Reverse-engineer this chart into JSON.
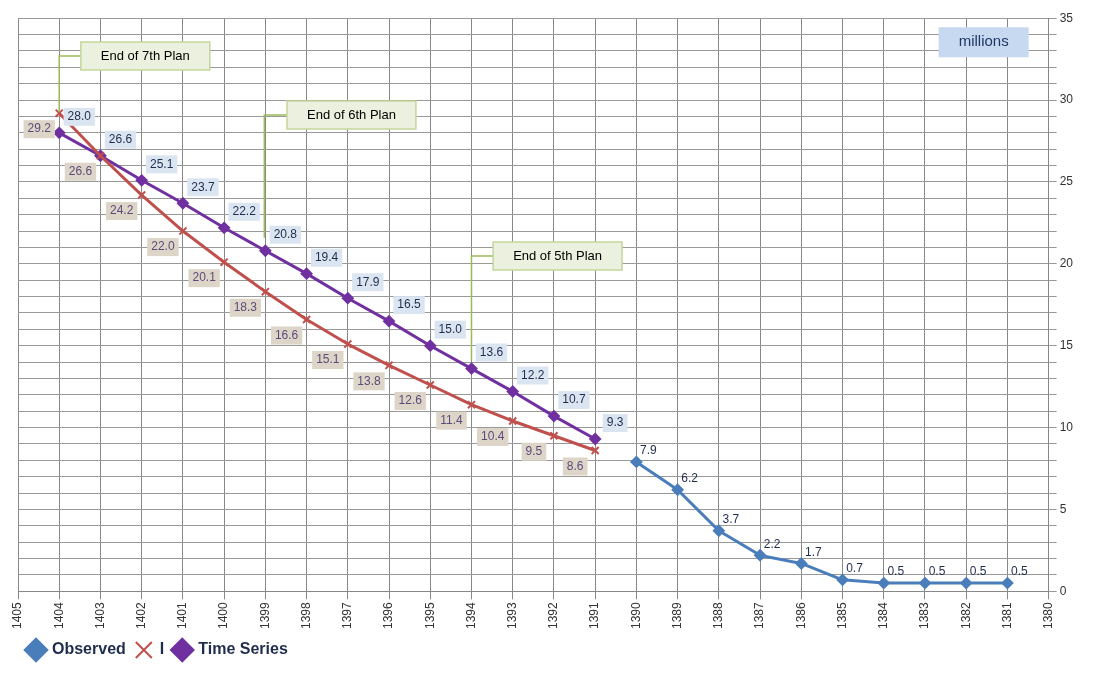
{
  "chart_data": {
    "type": "line",
    "x": [
      1404,
      1403,
      1402,
      1401,
      1400,
      1399,
      1398,
      1397,
      1396,
      1395,
      1394,
      1393,
      1392,
      1391
    ],
    "series": [
      {
        "name": "Observed",
        "color": "#4a7ebb",
        "marker": "diamond",
        "x": [
          1390,
          1389,
          1388,
          1387,
          1386,
          1385,
          1384,
          1383,
          1382,
          1381
        ],
        "values": [
          7.9,
          6.2,
          3.7,
          2.2,
          1.7,
          0.7,
          0.5,
          0.5,
          0.5,
          0.5
        ],
        "value_labels": [
          "7.9",
          "6.2",
          "3.7",
          "2.2",
          "1.7",
          "0.7",
          "0.5",
          "0.5",
          "0.5",
          "0.5"
        ]
      },
      {
        "name": "I",
        "color": "#c0504d",
        "marker": "cross",
        "values": [
          29.2,
          26.6,
          24.2,
          22.0,
          20.1,
          18.3,
          16.6,
          15.1,
          13.8,
          12.6,
          11.4,
          10.4,
          9.5,
          8.6
        ],
        "value_labels": [
          "29.2",
          "26.6",
          "24.2",
          "22.0",
          "20.1",
          "18.3",
          "16.6",
          "15.1",
          "13.8",
          "12.6",
          "11.4",
          "10.4",
          "9.5",
          "8.6"
        ]
      },
      {
        "name": "Time Series",
        "color": "#7030a0",
        "marker": "diamond",
        "values": [
          28.0,
          26.6,
          25.1,
          23.7,
          22.2,
          20.8,
          19.4,
          17.9,
          16.5,
          15.0,
          13.6,
          12.2,
          10.7,
          9.3
        ],
        "value_labels": [
          "28.0",
          "26.6",
          "25.1",
          "23.7",
          "22.2",
          "20.8",
          "19.4",
          "17.9",
          "16.5",
          "15.0",
          "13.6",
          "12.2",
          "10.7",
          "9.3"
        ]
      }
    ],
    "xlim": [
      1405,
      1380
    ],
    "xticks": [
      1405,
      1404,
      1403,
      1402,
      1401,
      1400,
      1399,
      1398,
      1397,
      1396,
      1395,
      1394,
      1393,
      1392,
      1391,
      1390,
      1389,
      1388,
      1387,
      1386,
      1385,
      1384,
      1383,
      1382,
      1381,
      1380
    ],
    "ylim": [
      0,
      35
    ],
    "yticks": [
      0,
      {
        "value": 1,
        "label": null
      },
      {
        "value": 2,
        "label": null
      },
      {
        "value": 3,
        "label": null
      },
      {
        "value": 4,
        "label": null
      },
      5,
      {
        "value": 6,
        "label": null
      },
      {
        "value": 7,
        "label": null
      },
      {
        "value": 8,
        "label": null
      },
      {
        "value": 9,
        "label": null
      },
      10,
      {
        "value": 11,
        "label": null
      },
      {
        "value": 12,
        "label": null
      },
      {
        "value": 13,
        "label": null
      },
      {
        "value": 14,
        "label": null
      },
      15,
      {
        "value": 16,
        "label": null
      },
      {
        "value": 17,
        "label": null
      },
      {
        "value": 18,
        "label": null
      },
      {
        "value": 19,
        "label": null
      },
      20,
      {
        "value": 21,
        "label": null
      },
      {
        "value": 22,
        "label": null
      },
      {
        "value": 23,
        "label": null
      },
      {
        "value": 24,
        "label": null
      },
      25,
      {
        "value": 26,
        "label": null
      },
      {
        "value": 27,
        "label": null
      },
      {
        "value": 28,
        "label": null
      },
      {
        "value": 29,
        "label": null
      },
      30,
      {
        "value": 31,
        "label": null
      },
      {
        "value": 32,
        "label": null
      },
      {
        "value": 33,
        "label": null
      },
      {
        "value": 34,
        "label": null
      },
      35
    ],
    "grid": true,
    "legend": "bottom left",
    "line_style": "solid",
    "annotations": [
      "millions",
      "End of 7th Plan",
      "End of 6th Plan",
      "End of 5th Plan"
    ]
  }
}
